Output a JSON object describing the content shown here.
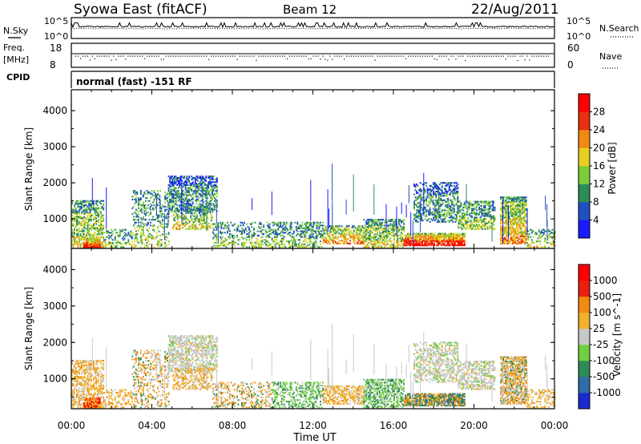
{
  "header": {
    "station": "Syowa East (fitACF)",
    "beam": "Beam 12",
    "date": "22/Aug/2011"
  },
  "strips": {
    "nsky_label": "N.Sky",
    "nsearch_label": "N.Search",
    "nsky_ticks": [
      "10^5",
      "10^0"
    ],
    "nsearch_ticks": [
      "10^5",
      "10^0"
    ],
    "freq_label": "Freq.",
    "freq_unit": "[MHz]",
    "freq_ticks": [
      "18",
      "8"
    ],
    "nave_label": "Nave",
    "nave_ticks": [
      "60",
      "0"
    ],
    "cpid_label": "CPID",
    "cpid_value": "normal (fast) -151 RF"
  },
  "chart_data": [
    {
      "type": "heatmap",
      "name": "power",
      "ylabel": "Slant Range [km]",
      "ylim": [
        180,
        4580
      ],
      "yticks": [
        "4000",
        "3000",
        "2000",
        "1000"
      ],
      "colorbar_label": "Power [dB]",
      "colorbar_ticks": [
        "28",
        "24",
        "20",
        "16",
        "12",
        "8",
        "4"
      ],
      "colors": [
        "#1a1aff",
        "#2050c0",
        "#2e8b57",
        "#7ccd3a",
        "#e8d020",
        "#f08a10",
        "#e83010",
        "#ff0000"
      ]
    },
    {
      "type": "heatmap",
      "name": "velocity",
      "ylabel": "Slant Range [km]",
      "ylim": [
        180,
        4580
      ],
      "yticks": [
        "4000",
        "3000",
        "2000",
        "1000"
      ],
      "colorbar_label": "Velocity [m s^-1]",
      "colorbar_ticks": [
        "1000",
        "500",
        "100",
        "25",
        "-25",
        "-100",
        "-500",
        "-1000"
      ],
      "colors": [
        "#1a2ad0",
        "#2e6ea8",
        "#2e8b57",
        "#6ed040",
        "#c8c8c8",
        "#f0b030",
        "#f08a10",
        "#e82010",
        "#ff0000"
      ],
      "xlabel": "Time UT",
      "xticks": [
        "00:00",
        "04:00",
        "08:00",
        "12:00",
        "16:00",
        "20:00",
        "00:00"
      ]
    }
  ]
}
